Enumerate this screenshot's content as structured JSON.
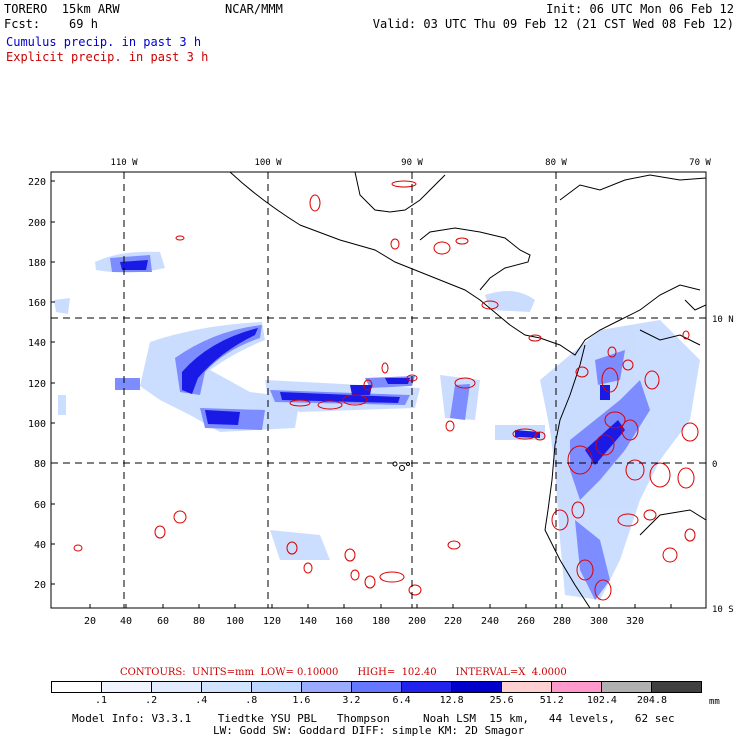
{
  "header": {
    "line1": "TORERO  15km ARW",
    "line2": "Fcst:    69 h",
    "model_center": "NCAR/MMM",
    "init": "Init: 06 UTC Mon 06 Feb 12",
    "valid": "Valid: 03 UTC Thu 09 Feb 12 (21 CST Wed 08 Feb 12)"
  },
  "legend": {
    "cumulus": "Cumulus precip. in past 3 h",
    "explicit": "Explicit precip. in past 3 h"
  },
  "map": {
    "top_lon_labels": [
      "110 W",
      "100 W",
      "90 W",
      "80 W",
      "70 W"
    ],
    "right_lat_labels": [
      "10 N",
      "0",
      "10 S"
    ],
    "y_tick_labels": [
      "20",
      "40",
      "60",
      "80",
      "100",
      "120",
      "140",
      "160",
      "180",
      "200",
      "220"
    ],
    "x_tick_labels": [
      "20",
      "40",
      "60",
      "80",
      "100",
      "120",
      "140",
      "160",
      "180",
      "200",
      "220",
      "240",
      "260",
      "280",
      "300",
      "320"
    ],
    "gridline_lons": [
      "110 W",
      "100 W",
      "90 W",
      "80 W"
    ],
    "gridline_lats": [
      "10 N",
      "0"
    ]
  },
  "contours": {
    "text": "CONTOURS:  UNITS=mm  LOW= 0.10000      HIGH=  102.40      INTERVAL=X  4.0000"
  },
  "colorbar": {
    "labels": [
      ".1",
      ".2",
      ".4",
      ".8",
      "1.6",
      "3.2",
      "6.4",
      "12.8",
      "25.6",
      "51.2",
      "102.4",
      "204.8"
    ],
    "colors": [
      "#ffffff",
      "#f0f4ff",
      "#e2ecff",
      "#d0e4ff",
      "#bcd6ff",
      "#99aaff",
      "#6677ff",
      "#2222ee",
      "#0000cc",
      "#ffd0d0",
      "#ff99cc",
      "#b0b0b0",
      "#404040",
      "#d8a8ff"
    ],
    "unit": "mm"
  },
  "footer": {
    "line1": "Model Info: V3.3.1    Tiedtke YSU PBL   Thompson     Noah LSM  15 km,   44 levels,   62 sec",
    "line2": "LW: Godd SW: Goddard DIFF: simple KM: 2D Smagor"
  }
}
